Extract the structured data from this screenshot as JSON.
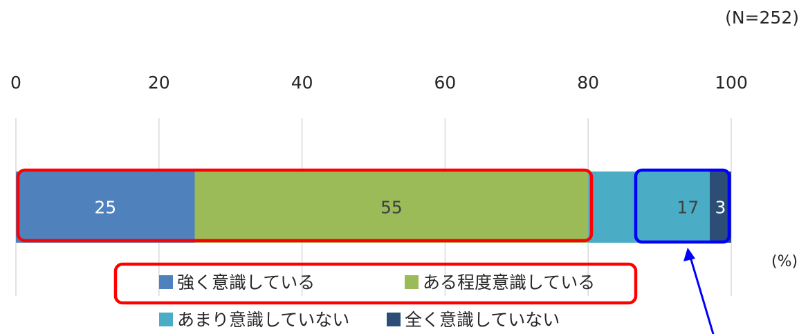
{
  "note": "(N=252)",
  "unit_label": "(%)",
  "colors": {
    "strongly": "#4f81bd",
    "somewhat": "#9bbb59",
    "not_much": "#4bacc6",
    "not_at_all": "#2c4d75",
    "red_highlight": "#ff0000",
    "blue_highlight": "#0000ff",
    "gridline": "#d9d9d9",
    "text": "#262626"
  },
  "chart_data": {
    "type": "bar",
    "orientation": "horizontal",
    "stacked": true,
    "categories": [
      ""
    ],
    "series": [
      {
        "name": "強く意識している",
        "values": [
          25
        ],
        "color": "#4f81bd"
      },
      {
        "name": "ある程度意識している",
        "values": [
          55
        ],
        "color": "#9bbb59"
      },
      {
        "name": "あまり意識していない",
        "values": [
          17
        ],
        "color": "#4bacc6"
      },
      {
        "name": "全く意識していない",
        "values": [
          3
        ],
        "color": "#2c4d75"
      }
    ],
    "xlim": [
      0,
      100
    ],
    "xticks": [
      "0",
      "20",
      "40",
      "60",
      "80",
      "100"
    ],
    "grid": true,
    "legend_position": "bottom"
  }
}
